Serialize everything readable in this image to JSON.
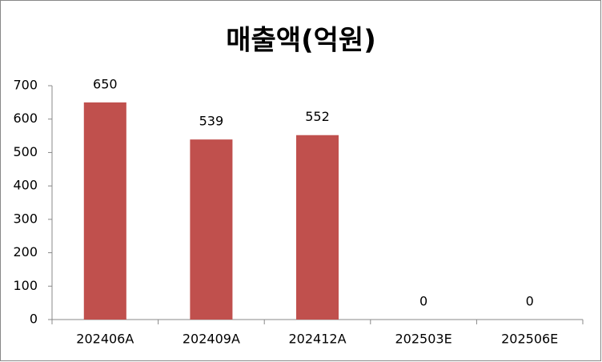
{
  "chart_data": {
    "type": "bar",
    "title": "매출액(억원)",
    "categories": [
      "202406A",
      "202409A",
      "202412A",
      "202503E",
      "202506E"
    ],
    "values": [
      650,
      539,
      552,
      0,
      0
    ],
    "color": "#c0504d",
    "ylim": [
      0,
      700
    ],
    "yticks": [
      0,
      100,
      200,
      300,
      400,
      500,
      600,
      700
    ],
    "grid": false,
    "data_labels": true
  }
}
